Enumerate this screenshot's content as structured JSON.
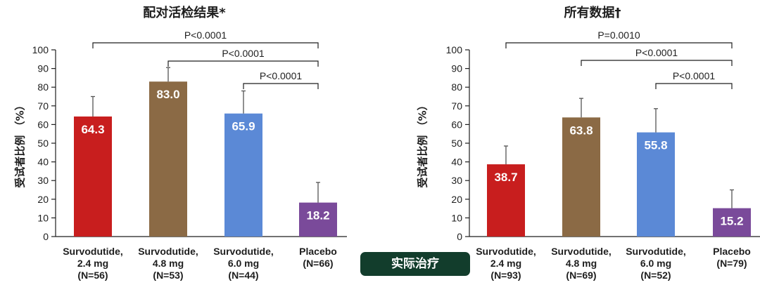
{
  "chart_data": [
    {
      "type": "bar",
      "title": "配对活检结果*",
      "ylabel": "受试者比例 （%）",
      "ylim": [
        0,
        100
      ],
      "yticks": [
        0,
        10,
        20,
        30,
        40,
        50,
        60,
        70,
        80,
        90,
        100
      ],
      "categories": [
        [
          "Survodutide,",
          "2.4 mg",
          "(N=56)"
        ],
        [
          "Survodutide,",
          "4.8 mg",
          "(N=53)"
        ],
        [
          "Survodutide,",
          "6.0 mg",
          "(N=44)"
        ],
        [
          "Placebo",
          "(N=66)"
        ]
      ],
      "values": [
        64.3,
        83.0,
        65.9,
        18.2
      ],
      "value_labels": [
        "64.3",
        "83.0",
        "65.9",
        "18.2"
      ],
      "error_upper": [
        75.0,
        90.5,
        78.0,
        29.0
      ],
      "colors": [
        "#c81e1e",
        "#8b6a45",
        "#5b89d6",
        "#7a4a9a"
      ],
      "comparisons": [
        {
          "from": 0,
          "to": 3,
          "label": "P<0.0001"
        },
        {
          "from": 1,
          "to": 3,
          "label": "P<0.0001"
        },
        {
          "from": 2,
          "to": 3,
          "label": "P<0.0001"
        }
      ]
    },
    {
      "type": "bar",
      "title": "所有数据†",
      "ylabel": "受试者比例 （%）",
      "ylim": [
        0,
        100
      ],
      "yticks": [
        0,
        10,
        20,
        30,
        40,
        50,
        60,
        70,
        80,
        90,
        100
      ],
      "categories": [
        [
          "Survodutide,",
          "2.4 mg",
          "(N=93)"
        ],
        [
          "Survodutide,",
          "4.8 mg",
          "(N=69)"
        ],
        [
          "Survodutide,",
          "6.0 mg",
          "(N=52)"
        ],
        [
          "Placebo",
          "(N=79)"
        ]
      ],
      "values": [
        38.7,
        63.8,
        55.8,
        15.2
      ],
      "value_labels": [
        "38.7",
        "63.8",
        "55.8",
        "15.2"
      ],
      "error_upper": [
        48.5,
        74.0,
        68.5,
        25.0
      ],
      "colors": [
        "#c81e1e",
        "#8b6a45",
        "#5b89d6",
        "#7a4a9a"
      ],
      "comparisons": [
        {
          "from": 0,
          "to": 3,
          "label": "P=0.0010"
        },
        {
          "from": 1,
          "to": 3,
          "label": "P<0.0001"
        },
        {
          "from": 2,
          "to": 3,
          "label": "P<0.0001"
        }
      ]
    }
  ],
  "badge": "实际治疗"
}
